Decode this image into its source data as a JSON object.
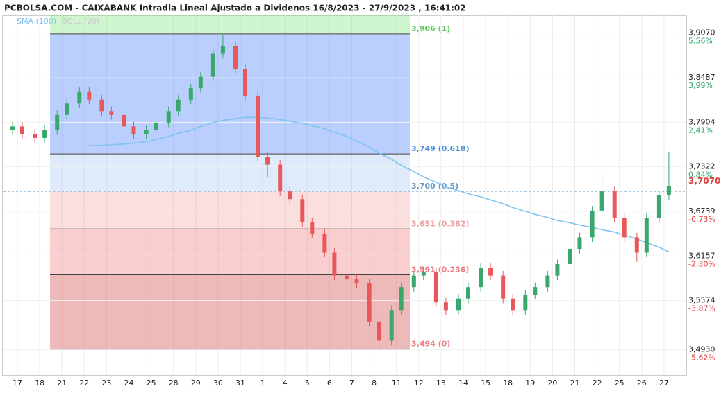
{
  "chart_data": {
    "type": "candlestick",
    "title": "PCBOLSA.COM - CAIXABANK Intradia Lineal Ajustado a Dividenos 16/8/2023 - 27/9/2023 , 16:41:02",
    "indicators": [
      {
        "name": "SMA (100)",
        "color": "#7fc4f0"
      },
      {
        "name": "BOLL (20)",
        "color": "#c8c8c8"
      }
    ],
    "categories": [
      "17",
      "18",
      "21",
      "22",
      "23",
      "24",
      "25",
      "28",
      "29",
      "30",
      "31",
      "1",
      "4",
      "5",
      "6",
      "7",
      "8",
      "11",
      "12",
      "13",
      "14",
      "15",
      "18",
      "19",
      "20",
      "21",
      "22",
      "25",
      "26",
      "27"
    ],
    "up_color": "#3aa76d",
    "down_color": "#e8575a",
    "open": [
      3.78,
      3.785,
      3.775,
      3.77,
      3.78,
      3.8,
      3.815,
      3.83,
      3.82,
      3.805,
      3.8,
      3.785,
      3.775,
      3.78,
      3.79,
      3.805,
      3.82,
      3.835,
      3.85,
      3.88,
      3.89,
      3.86,
      3.825,
      3.745,
      3.735,
      3.7,
      3.69,
      3.66,
      3.645,
      3.62,
      3.59,
      3.585,
      3.58,
      3.53,
      3.505,
      3.545,
      3.575,
      3.59,
      3.595,
      3.555,
      3.545,
      3.56,
      3.575,
      3.6,
      3.59,
      3.56,
      3.545,
      3.565,
      3.575,
      3.59,
      3.605,
      3.625,
      3.64,
      3.675,
      3.7,
      3.665,
      3.64,
      3.62,
      3.665,
      3.695
    ],
    "high": [
      3.791,
      3.791,
      3.781,
      3.786,
      3.806,
      3.821,
      3.836,
      3.836,
      3.826,
      3.811,
      3.806,
      3.791,
      3.786,
      3.796,
      3.811,
      3.826,
      3.841,
      3.856,
      3.886,
      3.906,
      3.896,
      3.866,
      3.831,
      3.751,
      3.741,
      3.706,
      3.696,
      3.666,
      3.651,
      3.626,
      3.596,
      3.591,
      3.586,
      3.536,
      3.551,
      3.581,
      3.596,
      3.601,
      3.601,
      3.561,
      3.566,
      3.581,
      3.606,
      3.606,
      3.596,
      3.566,
      3.571,
      3.581,
      3.596,
      3.611,
      3.631,
      3.646,
      3.681,
      3.721,
      3.706,
      3.671,
      3.646,
      3.671,
      3.701,
      3.752
    ],
    "low": [
      3.774,
      3.769,
      3.764,
      3.764,
      3.774,
      3.794,
      3.809,
      3.814,
      3.799,
      3.794,
      3.779,
      3.769,
      3.769,
      3.774,
      3.784,
      3.799,
      3.814,
      3.829,
      3.844,
      3.874,
      3.854,
      3.819,
      3.739,
      3.718,
      3.694,
      3.684,
      3.654,
      3.639,
      3.614,
      3.584,
      3.579,
      3.574,
      3.524,
      3.494,
      3.499,
      3.539,
      3.569,
      3.584,
      3.549,
      3.539,
      3.539,
      3.554,
      3.569,
      3.584,
      3.554,
      3.539,
      3.539,
      3.559,
      3.569,
      3.584,
      3.599,
      3.619,
      3.634,
      3.669,
      3.659,
      3.634,
      3.608,
      3.614,
      3.659,
      3.689
    ],
    "close": [
      3.785,
      3.775,
      3.77,
      3.78,
      3.8,
      3.815,
      3.83,
      3.82,
      3.805,
      3.8,
      3.785,
      3.775,
      3.78,
      3.79,
      3.805,
      3.82,
      3.835,
      3.85,
      3.88,
      3.89,
      3.86,
      3.825,
      3.745,
      3.735,
      3.7,
      3.69,
      3.66,
      3.645,
      3.62,
      3.59,
      3.585,
      3.58,
      3.53,
      3.505,
      3.545,
      3.575,
      3.59,
      3.595,
      3.555,
      3.545,
      3.56,
      3.575,
      3.6,
      3.59,
      3.56,
      3.545,
      3.565,
      3.575,
      3.59,
      3.605,
      3.625,
      3.64,
      3.675,
      3.7,
      3.665,
      3.64,
      3.62,
      3.665,
      3.695,
      3.707
    ],
    "sma": [
      null,
      null,
      null,
      null,
      null,
      null,
      null,
      3.76,
      3.76,
      3.761,
      3.762,
      3.763,
      3.765,
      3.768,
      3.772,
      3.776,
      3.78,
      3.785,
      3.79,
      3.793,
      3.795,
      3.797,
      3.797,
      3.796,
      3.794,
      3.792,
      3.789,
      3.786,
      3.782,
      3.777,
      3.772,
      3.766,
      3.758,
      3.75,
      3.742,
      3.734,
      3.726,
      3.719,
      3.712,
      3.706,
      3.701,
      3.697,
      3.693,
      3.689,
      3.684,
      3.679,
      3.674,
      3.67,
      3.666,
      3.662,
      3.659,
      3.656,
      3.653,
      3.65,
      3.647,
      3.643,
      3.638,
      3.633,
      3.627,
      3.621
    ],
    "fib_levels": [
      {
        "value": 3.906,
        "label": "3,906 (1)",
        "color": "#5cc85c",
        "fill": "rgba(90,140,250,0.42)"
      },
      {
        "value": 3.749,
        "label": "3,749 (0.618)",
        "color": "#4a8fe0",
        "fill": "rgba(150,190,240,0.3)"
      },
      {
        "value": 3.7,
        "label": "3,700 (0.5)",
        "color": "#6a9cc8",
        "fill": "rgba(240,140,140,0.28)"
      },
      {
        "value": 3.651,
        "label": "3,651 (0.382)",
        "color": "#f0a0a0",
        "fill": "rgba(235,120,120,0.36)"
      },
      {
        "value": 3.591,
        "label": "3,591 (0.236)",
        "color": "#f08080",
        "fill": "rgba(215,100,100,0.45)"
      },
      {
        "value": 3.494,
        "label": "3,494 (0)",
        "color": "#f08080"
      }
    ],
    "last_price": {
      "value": 3.707,
      "label": "3,7070",
      "color": "#e04040"
    },
    "ylim": [
      3.461,
      3.943
    ],
    "yticks": [
      {
        "value": 3.907,
        "label": "3,9070",
        "change": "5,56%"
      },
      {
        "value": 3.8487,
        "label": "3,8487",
        "change": "3,99%"
      },
      {
        "value": 3.7904,
        "label": "3,7904",
        "change": "2,41%"
      },
      {
        "value": 3.7322,
        "label": "3,7322",
        "change": "0,84%"
      },
      {
        "value": 3.6739,
        "label": "3,6739",
        "change": "-0,73%"
      },
      {
        "value": 3.6157,
        "label": "3,6157",
        "change": "-2,30%"
      },
      {
        "value": 3.5574,
        "label": "3,5574",
        "change": "-3,87%"
      },
      {
        "value": 3.493,
        "label": "3,4930",
        "change": "-5,62%"
      }
    ]
  }
}
